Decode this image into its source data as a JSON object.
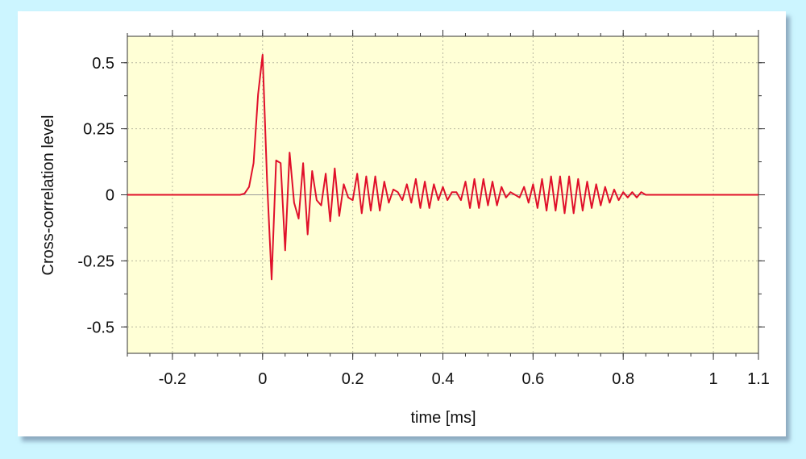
{
  "chart_data": {
    "type": "line",
    "title": "",
    "xlabel": "time [ms]",
    "ylabel": "Cross-correlation level",
    "xlim": [
      -0.3,
      1.1
    ],
    "ylim": [
      -0.6,
      0.6
    ],
    "xticks": [
      -0.2,
      0,
      0.2,
      0.4,
      0.6,
      0.8,
      1,
      1.1
    ],
    "xtick_labels": [
      "-0.2",
      "0",
      "0.2",
      "0.4",
      "0.6",
      "0.8",
      "1",
      "1.1"
    ],
    "yticks": [
      0.5,
      0.25,
      0,
      -0.25,
      -0.5
    ],
    "ytick_labels": [
      "0.5",
      "0.25",
      "0",
      "-0.25",
      "-0.5"
    ],
    "grid": true,
    "colors": {
      "plot_bg": "#ffffd6",
      "line": "#e0102a",
      "page_bg": "#ccf5ff"
    },
    "series": [
      {
        "x": [
          -0.3,
          -0.25,
          -0.2,
          -0.15,
          -0.12,
          -0.1,
          -0.08,
          -0.06,
          -0.05,
          -0.04,
          -0.03,
          -0.02,
          -0.01,
          0,
          0.01,
          0.02,
          0.03,
          0.04,
          0.05,
          0.06,
          0.07,
          0.08,
          0.09,
          0.1,
          0.11,
          0.12,
          0.13,
          0.14,
          0.15,
          0.16,
          0.17,
          0.18,
          0.19,
          0.2,
          0.21,
          0.22,
          0.23,
          0.24,
          0.25,
          0.26,
          0.27,
          0.28,
          0.29,
          0.3,
          0.31,
          0.32,
          0.33,
          0.34,
          0.35,
          0.36,
          0.37,
          0.38,
          0.39,
          0.4,
          0.41,
          0.42,
          0.43,
          0.44,
          0.45,
          0.46,
          0.47,
          0.48,
          0.49,
          0.5,
          0.51,
          0.52,
          0.53,
          0.54,
          0.55,
          0.56,
          0.57,
          0.58,
          0.59,
          0.6,
          0.61,
          0.62,
          0.63,
          0.64,
          0.65,
          0.66,
          0.67,
          0.68,
          0.69,
          0.7,
          0.71,
          0.72,
          0.73,
          0.74,
          0.75,
          0.76,
          0.77,
          0.78,
          0.79,
          0.8,
          0.81,
          0.82,
          0.83,
          0.84,
          0.85,
          0.86,
          0.87,
          0.88,
          0.89,
          0.9,
          0.91,
          0.92,
          0.93,
          0.94,
          0.95,
          0.96,
          0.97,
          0.98,
          0.99,
          1.0,
          1.02,
          1.05,
          1.08,
          1.1
        ],
        "y": [
          0,
          0,
          0,
          0,
          0,
          0,
          0,
          0,
          0,
          0.005,
          0.03,
          0.12,
          0.38,
          0.53,
          0.05,
          -0.32,
          0.13,
          0.12,
          -0.21,
          0.16,
          -0.03,
          -0.09,
          0.12,
          -0.15,
          0.09,
          -0.02,
          -0.04,
          0.08,
          -0.1,
          0.1,
          -0.08,
          0.04,
          -0.01,
          -0.02,
          0.08,
          -0.07,
          0.07,
          -0.06,
          0.07,
          -0.06,
          0.05,
          -0.03,
          0.02,
          0.01,
          -0.02,
          0.04,
          -0.03,
          0.06,
          -0.05,
          0.05,
          -0.05,
          0.04,
          -0.02,
          0.03,
          -0.02,
          0.01,
          0.01,
          -0.02,
          0.05,
          -0.05,
          0.06,
          -0.05,
          0.06,
          -0.04,
          0.05,
          -0.04,
          0.03,
          -0.01,
          0.01,
          0,
          -0.01,
          0.03,
          -0.03,
          0.04,
          -0.05,
          0.06,
          -0.06,
          0.07,
          -0.06,
          0.07,
          -0.07,
          0.07,
          -0.07,
          0.06,
          -0.06,
          0.05,
          -0.05,
          0.04,
          -0.04,
          0.03,
          -0.03,
          0.02,
          -0.02,
          0.01,
          -0.01,
          0.01,
          -0.01,
          0.01,
          0,
          0,
          0,
          0,
          0,
          0,
          0,
          0,
          0,
          0,
          0,
          0,
          0,
          0,
          0,
          0,
          0,
          0,
          0,
          0
        ]
      }
    ]
  }
}
